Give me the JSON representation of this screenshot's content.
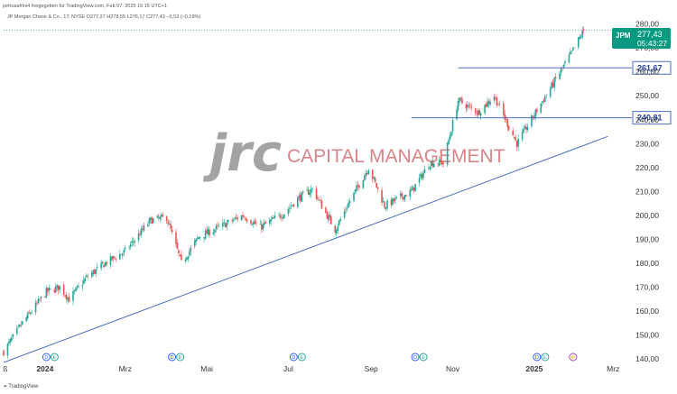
{
  "header": {
    "line1": "petrusafrini4 freigegeben für TradingView.com, Feb 07, 2025 16:16 UTC+1",
    "line2": "JP Morgan Chase & Co., 1T, NYSE  O277,27  H278,55  L276,17  C277,43  −0,53 (−0,19%)"
  },
  "watermark": {
    "logo": "jrc",
    "text": "CAPITAL MANAGEMENT"
  },
  "footer": {
    "brand": "TradingView"
  },
  "price_badge": {
    "symbol": "JPM",
    "price": "277,43",
    "countdown": "05:43:27",
    "color": "#089981"
  },
  "colors": {
    "up": "#26a69a",
    "down": "#ef5350",
    "trendline": "#4a6fc4",
    "levels": "#4a6fc4"
  },
  "chart_data": {
    "type": "candlestick",
    "symbol": "JPM",
    "title": "JP Morgan Chase & Co., 1T, NYSE",
    "ylim": [
      140,
      280
    ],
    "xlim": [
      "2023-12-01",
      "2025-03-15"
    ],
    "y_ticks": [
      "140,00",
      "150,00",
      "160,00",
      "170,00",
      "180,00",
      "190,00",
      "200,00",
      "210,00",
      "220,00",
      "230,00",
      "240,00",
      "250,00",
      "260,00",
      "270,00",
      "280,00"
    ],
    "x_ticks": [
      {
        "label": "ß",
        "date": "2023-12-01",
        "bold": false
      },
      {
        "label": "2024",
        "date": "2024-01-01",
        "bold": true
      },
      {
        "label": "Mrz",
        "date": "2024-03-01",
        "bold": false
      },
      {
        "label": "Mai",
        "date": "2024-05-01",
        "bold": false
      },
      {
        "label": "Jul",
        "date": "2024-07-01",
        "bold": false
      },
      {
        "label": "Sep",
        "date": "2024-09-01",
        "bold": false
      },
      {
        "label": "Nov",
        "date": "2024-11-01",
        "bold": false
      },
      {
        "label": "2025",
        "date": "2025-01-01",
        "bold": true
      },
      {
        "label": "Mrz",
        "date": "2025-03-01",
        "bold": false
      }
    ],
    "close_path": [
      [
        "2023-12-01",
        143
      ],
      [
        "2023-12-15",
        155
      ],
      [
        "2024-01-02",
        168
      ],
      [
        "2024-01-12",
        170
      ],
      [
        "2024-01-19",
        165
      ],
      [
        "2024-02-01",
        174
      ],
      [
        "2024-02-15",
        180
      ],
      [
        "2024-03-01",
        185
      ],
      [
        "2024-03-20",
        198
      ],
      [
        "2024-04-01",
        199
      ],
      [
        "2024-04-12",
        180
      ],
      [
        "2024-04-25",
        191
      ],
      [
        "2024-05-10",
        195
      ],
      [
        "2024-05-28",
        200
      ],
      [
        "2024-06-10",
        195
      ],
      [
        "2024-06-28",
        201
      ],
      [
        "2024-07-08",
        207
      ],
      [
        "2024-07-19",
        211
      ],
      [
        "2024-08-05",
        194
      ],
      [
        "2024-08-15",
        205
      ],
      [
        "2024-08-30",
        220
      ],
      [
        "2024-09-11",
        204
      ],
      [
        "2024-10-01",
        210
      ],
      [
        "2024-10-15",
        222
      ],
      [
        "2024-10-25",
        222
      ],
      [
        "2024-11-05",
        248
      ],
      [
        "2024-11-20",
        243
      ],
      [
        "2024-12-02",
        250
      ],
      [
        "2024-12-19",
        230
      ],
      [
        "2025-01-03",
        244
      ],
      [
        "2025-01-15",
        255
      ],
      [
        "2025-01-29",
        268
      ],
      [
        "2025-02-07",
        277.43
      ]
    ],
    "levels": [
      {
        "value": 261.67,
        "label": "261,67",
        "from": "2024-11-05"
      },
      {
        "value": 240.81,
        "label": "240,81",
        "from": "2024-10-01"
      }
    ],
    "trendline": [
      [
        "2023-12-01",
        138.5
      ],
      [
        "2025-02-25",
        233
      ]
    ],
    "last_price": 277.43,
    "events": [
      {
        "date": "2024-01-02",
        "marks": [
          "D",
          "E"
        ]
      },
      {
        "date": "2024-04-05",
        "marks": [
          "D",
          "E"
        ]
      },
      {
        "date": "2024-07-05",
        "marks": [
          "D",
          "E"
        ]
      },
      {
        "date": "2024-10-04",
        "marks": [
          "D",
          "E"
        ]
      },
      {
        "date": "2025-01-03",
        "marks": [
          "D",
          "E"
        ]
      },
      {
        "date": "2025-01-30",
        "marks": [
          "⚡"
        ]
      }
    ]
  }
}
